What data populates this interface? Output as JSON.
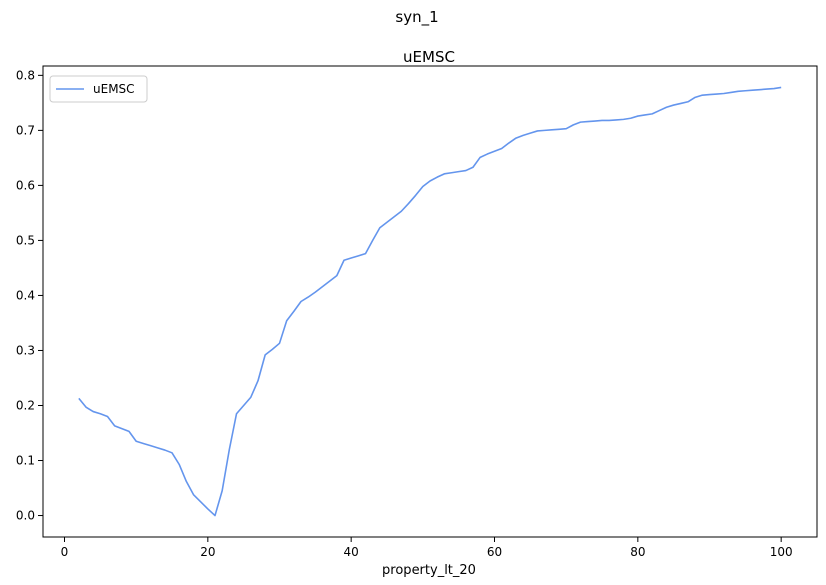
{
  "figure": {
    "suptitle": "syn_1"
  },
  "chart_data": {
    "type": "line",
    "title": "uEMSC",
    "xlabel": "property_lt_20",
    "ylabel": "",
    "xlim": [
      -3,
      105
    ],
    "ylim": [
      -0.039,
      0.817
    ],
    "xticks": [
      0,
      20,
      40,
      60,
      80,
      100
    ],
    "yticks": [
      0.0,
      0.1,
      0.2,
      0.3,
      0.4,
      0.5,
      0.6,
      0.7,
      0.8
    ],
    "xtick_labels": [
      "0",
      "20",
      "40",
      "60",
      "80",
      "100"
    ],
    "ytick_labels": [
      "0.0",
      "0.1",
      "0.2",
      "0.3",
      "0.4",
      "0.5",
      "0.6",
      "0.7",
      "0.8"
    ],
    "grid": false,
    "legend": {
      "position": "top-left",
      "entries": [
        "uEMSC"
      ]
    },
    "series": [
      {
        "name": "uEMSC",
        "color": "#6495ED",
        "x": [
          2,
          3,
          4,
          5,
          6,
          7,
          8,
          9,
          10,
          11,
          12,
          13,
          14,
          15,
          16,
          17,
          18,
          19,
          20,
          21,
          22,
          23,
          24,
          25,
          26,
          27,
          28,
          29,
          30,
          31,
          32,
          33,
          34,
          35,
          36,
          37,
          38,
          39,
          40,
          41,
          42,
          43,
          44,
          45,
          46,
          47,
          48,
          49,
          50,
          51,
          52,
          53,
          54,
          55,
          56,
          57,
          58,
          59,
          60,
          61,
          62,
          63,
          64,
          65,
          66,
          67,
          68,
          69,
          70,
          71,
          72,
          73,
          74,
          75,
          76,
          77,
          78,
          79,
          80,
          81,
          82,
          83,
          84,
          85,
          86,
          87,
          88,
          89,
          90,
          91,
          92,
          93,
          94,
          95,
          96,
          97,
          98,
          99,
          100
        ],
        "y": [
          0.213,
          0.197,
          0.189,
          0.185,
          0.18,
          0.163,
          0.158,
          0.153,
          0.135,
          0.131,
          0.127,
          0.123,
          0.119,
          0.114,
          0.093,
          0.062,
          0.038,
          0.025,
          0.012,
          0.0,
          0.045,
          0.12,
          0.185,
          0.2,
          0.215,
          0.245,
          0.292,
          0.302,
          0.313,
          0.354,
          0.371,
          0.389,
          0.397,
          0.406,
          0.416,
          0.426,
          0.436,
          0.464,
          0.468,
          0.472,
          0.476,
          0.5,
          0.523,
          0.533,
          0.543,
          0.553,
          0.567,
          0.582,
          0.598,
          0.608,
          0.615,
          0.621,
          0.623,
          0.625,
          0.627,
          0.633,
          0.651,
          0.657,
          0.662,
          0.667,
          0.677,
          0.686,
          0.691,
          0.695,
          0.699,
          0.7,
          0.701,
          0.702,
          0.703,
          0.71,
          0.715,
          0.716,
          0.717,
          0.718,
          0.718,
          0.719,
          0.72,
          0.722,
          0.726,
          0.728,
          0.73,
          0.736,
          0.742,
          0.746,
          0.749,
          0.752,
          0.76,
          0.764,
          0.765,
          0.766,
          0.767,
          0.769,
          0.771,
          0.772,
          0.773,
          0.774,
          0.775,
          0.776,
          0.778
        ]
      }
    ]
  }
}
